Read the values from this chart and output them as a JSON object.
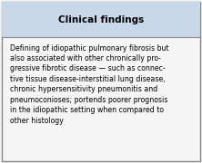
{
  "title": "Clinical findings",
  "title_bg_color": "#c8d8e8",
  "body_bg_color": "#f5f5f5",
  "border_color": "#888888",
  "title_fontsize": 7.5,
  "body_fontsize": 5.6,
  "title_fontstyle": "bold",
  "body_text": "Defining of idiopathic pulmonary fibrosis but\nalso associated with other chronically pro-\ngressive fibrotic disease — such as connec-\ntive tissue disease-interstitial lung disease,\nchronic hypersensitivity pneumonitis and\npneumoconioses; portends poorer prognosis\nin the idiopathic setting when compared to\nother histology"
}
